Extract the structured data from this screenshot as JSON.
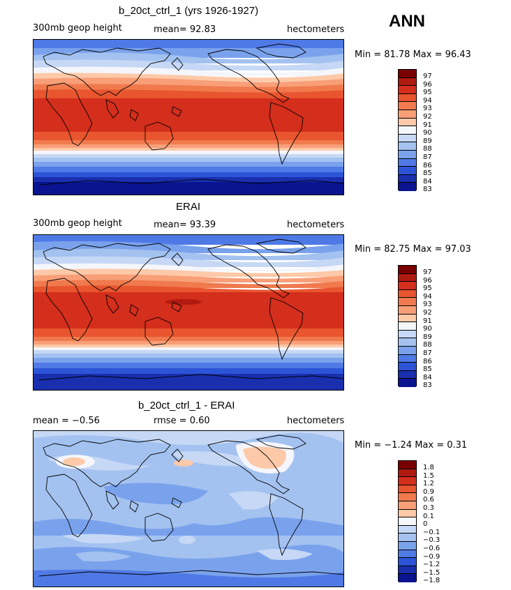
{
  "season": "ANN",
  "panels": [
    {
      "title": "b_20ct_ctrl_1 (yrs 1926-1927)",
      "left_label": "300mb geop height",
      "mid_label": "mean=  92.83",
      "right_label": "hectometers",
      "minmax": "Min =  81.78 Max =  96.43",
      "levels": [
        "97",
        "96",
        "95",
        "94",
        "93",
        "92",
        "91",
        "90",
        "89",
        "88",
        "87",
        "86",
        "85",
        "84",
        "83"
      ],
      "colors": [
        "#7a0000",
        "#b01a10",
        "#d42e1c",
        "#e8552f",
        "#f07a4e",
        "#f89f78",
        "#fdc9a8",
        "#f4f6fb",
        "#c6d8f5",
        "#a4c2f0",
        "#7aa2ec",
        "#4f7ae6",
        "#2c54d6",
        "#1a2fae",
        "#0a1490"
      ]
    },
    {
      "title": "ERAI",
      "left_label": "300mb geop height",
      "mid_label": "mean=  93.39",
      "right_label": "hectometers",
      "minmax": "Min =  82.75 Max =  97.03",
      "levels": [
        "97",
        "96",
        "95",
        "94",
        "93",
        "92",
        "91",
        "90",
        "89",
        "88",
        "87",
        "86",
        "85",
        "84",
        "83"
      ],
      "colors": [
        "#7a0000",
        "#b01a10",
        "#d42e1c",
        "#e8552f",
        "#f07a4e",
        "#f89f78",
        "#fdc9a8",
        "#f4f6fb",
        "#c6d8f5",
        "#a4c2f0",
        "#7aa2ec",
        "#4f7ae6",
        "#2c54d6",
        "#1a2fae",
        "#0a1490"
      ]
    },
    {
      "title": "b_20ct_ctrl_1 - ERAI",
      "left_label": "mean =  −0.56",
      "mid_label": "rmse =   0.60",
      "right_label": "hectometers",
      "minmax": "Min =  −1.24 Max =   0.31",
      "levels": [
        "1.8",
        "1.5",
        "1.2",
        "0.9",
        "0.6",
        "0.3",
        "0.1",
        "0",
        "−0.1",
        "−0.3",
        "−0.6",
        "−0.9",
        "−1.2",
        "−1.5",
        "−1.8"
      ],
      "colors": [
        "#7a0000",
        "#b01a10",
        "#d42e1c",
        "#e8552f",
        "#f07a4e",
        "#f89f78",
        "#fdc9a8",
        "#f4f6fb",
        "#c6d8f5",
        "#a4c2f0",
        "#7aa2ec",
        "#4f7ae6",
        "#2c54d6",
        "#1a2fae",
        "#0a1490"
      ]
    }
  ]
}
